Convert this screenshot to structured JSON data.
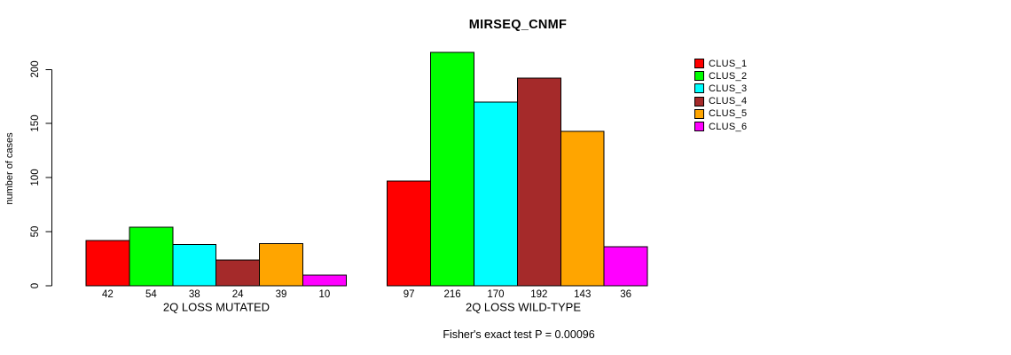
{
  "chart_data": {
    "type": "bar",
    "title": "MIRSEQ_CNMF",
    "xlabel": "",
    "ylabel": "number of cases",
    "ylim": [
      0,
      220
    ],
    "yticks": [
      0,
      50,
      100,
      150,
      200
    ],
    "grid": false,
    "legend_position": "right",
    "legend_labels": [
      "CLUS_1",
      "CLUS_2",
      "CLUS_3",
      "CLUS_4",
      "CLUS_5",
      "CLUS_6"
    ],
    "series_colors": [
      "#FF0000",
      "#00FF00",
      "#00FFFF",
      "#A52A2A",
      "#FFA500",
      "#FF00FF"
    ],
    "groups": [
      {
        "label": "2Q LOSS MUTATED",
        "values": [
          42,
          54,
          38,
          24,
          39,
          10
        ]
      },
      {
        "label": "2Q LOSS WILD-TYPE",
        "values": [
          97,
          216,
          170,
          192,
          143,
          36
        ]
      }
    ],
    "bar_value_labels_shown": true,
    "annotation": "Fisher's exact test P = 0.00096",
    "colors": {
      "axis": "#000000",
      "text": "#000000",
      "background": "#FFFFFF"
    }
  }
}
